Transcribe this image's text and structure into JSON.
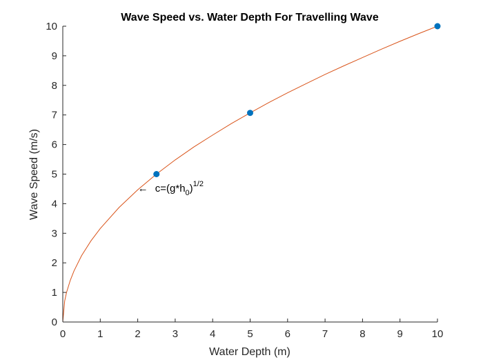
{
  "chart_data": {
    "type": "line",
    "title": "Wave Speed vs. Water Depth For Travelling Wave",
    "xlabel": "Water Depth (m)",
    "ylabel": "Wave Speed (m/s)",
    "xlim": [
      0,
      10
    ],
    "ylim": [
      0,
      10
    ],
    "xticks": [
      0,
      1,
      2,
      3,
      4,
      5,
      6,
      7,
      8,
      9,
      10
    ],
    "yticks": [
      0,
      1,
      2,
      3,
      4,
      5,
      6,
      7,
      8,
      9,
      10
    ],
    "grid": false,
    "series": [
      {
        "kind": "line",
        "color": "#D95319",
        "x": [
          0,
          0.05,
          0.1,
          0.2,
          0.3,
          0.5,
          0.75,
          1,
          1.5,
          2,
          2.5,
          3,
          3.5,
          4,
          4.5,
          5,
          5.5,
          6,
          6.5,
          7,
          7.5,
          8,
          8.5,
          9,
          9.5,
          10
        ],
        "y": [
          0,
          0.71,
          1.0,
          1.41,
          1.73,
          2.24,
          2.74,
          3.16,
          3.87,
          4.47,
          5.0,
          5.48,
          5.92,
          6.32,
          6.71,
          7.07,
          7.42,
          7.75,
          8.06,
          8.37,
          8.66,
          8.94,
          9.22,
          9.49,
          9.75,
          10.0
        ]
      },
      {
        "kind": "scatter",
        "color": "#0072BD",
        "x": [
          2.5,
          5,
          10
        ],
        "y": [
          5.0,
          7.07,
          10.0
        ]
      }
    ],
    "annotation": {
      "arrow": "←",
      "text_main": "c=(g*h",
      "text_sub": "0",
      "text_close": ")",
      "text_sup": "1/2",
      "x": 2.0,
      "y": 4.4
    }
  }
}
